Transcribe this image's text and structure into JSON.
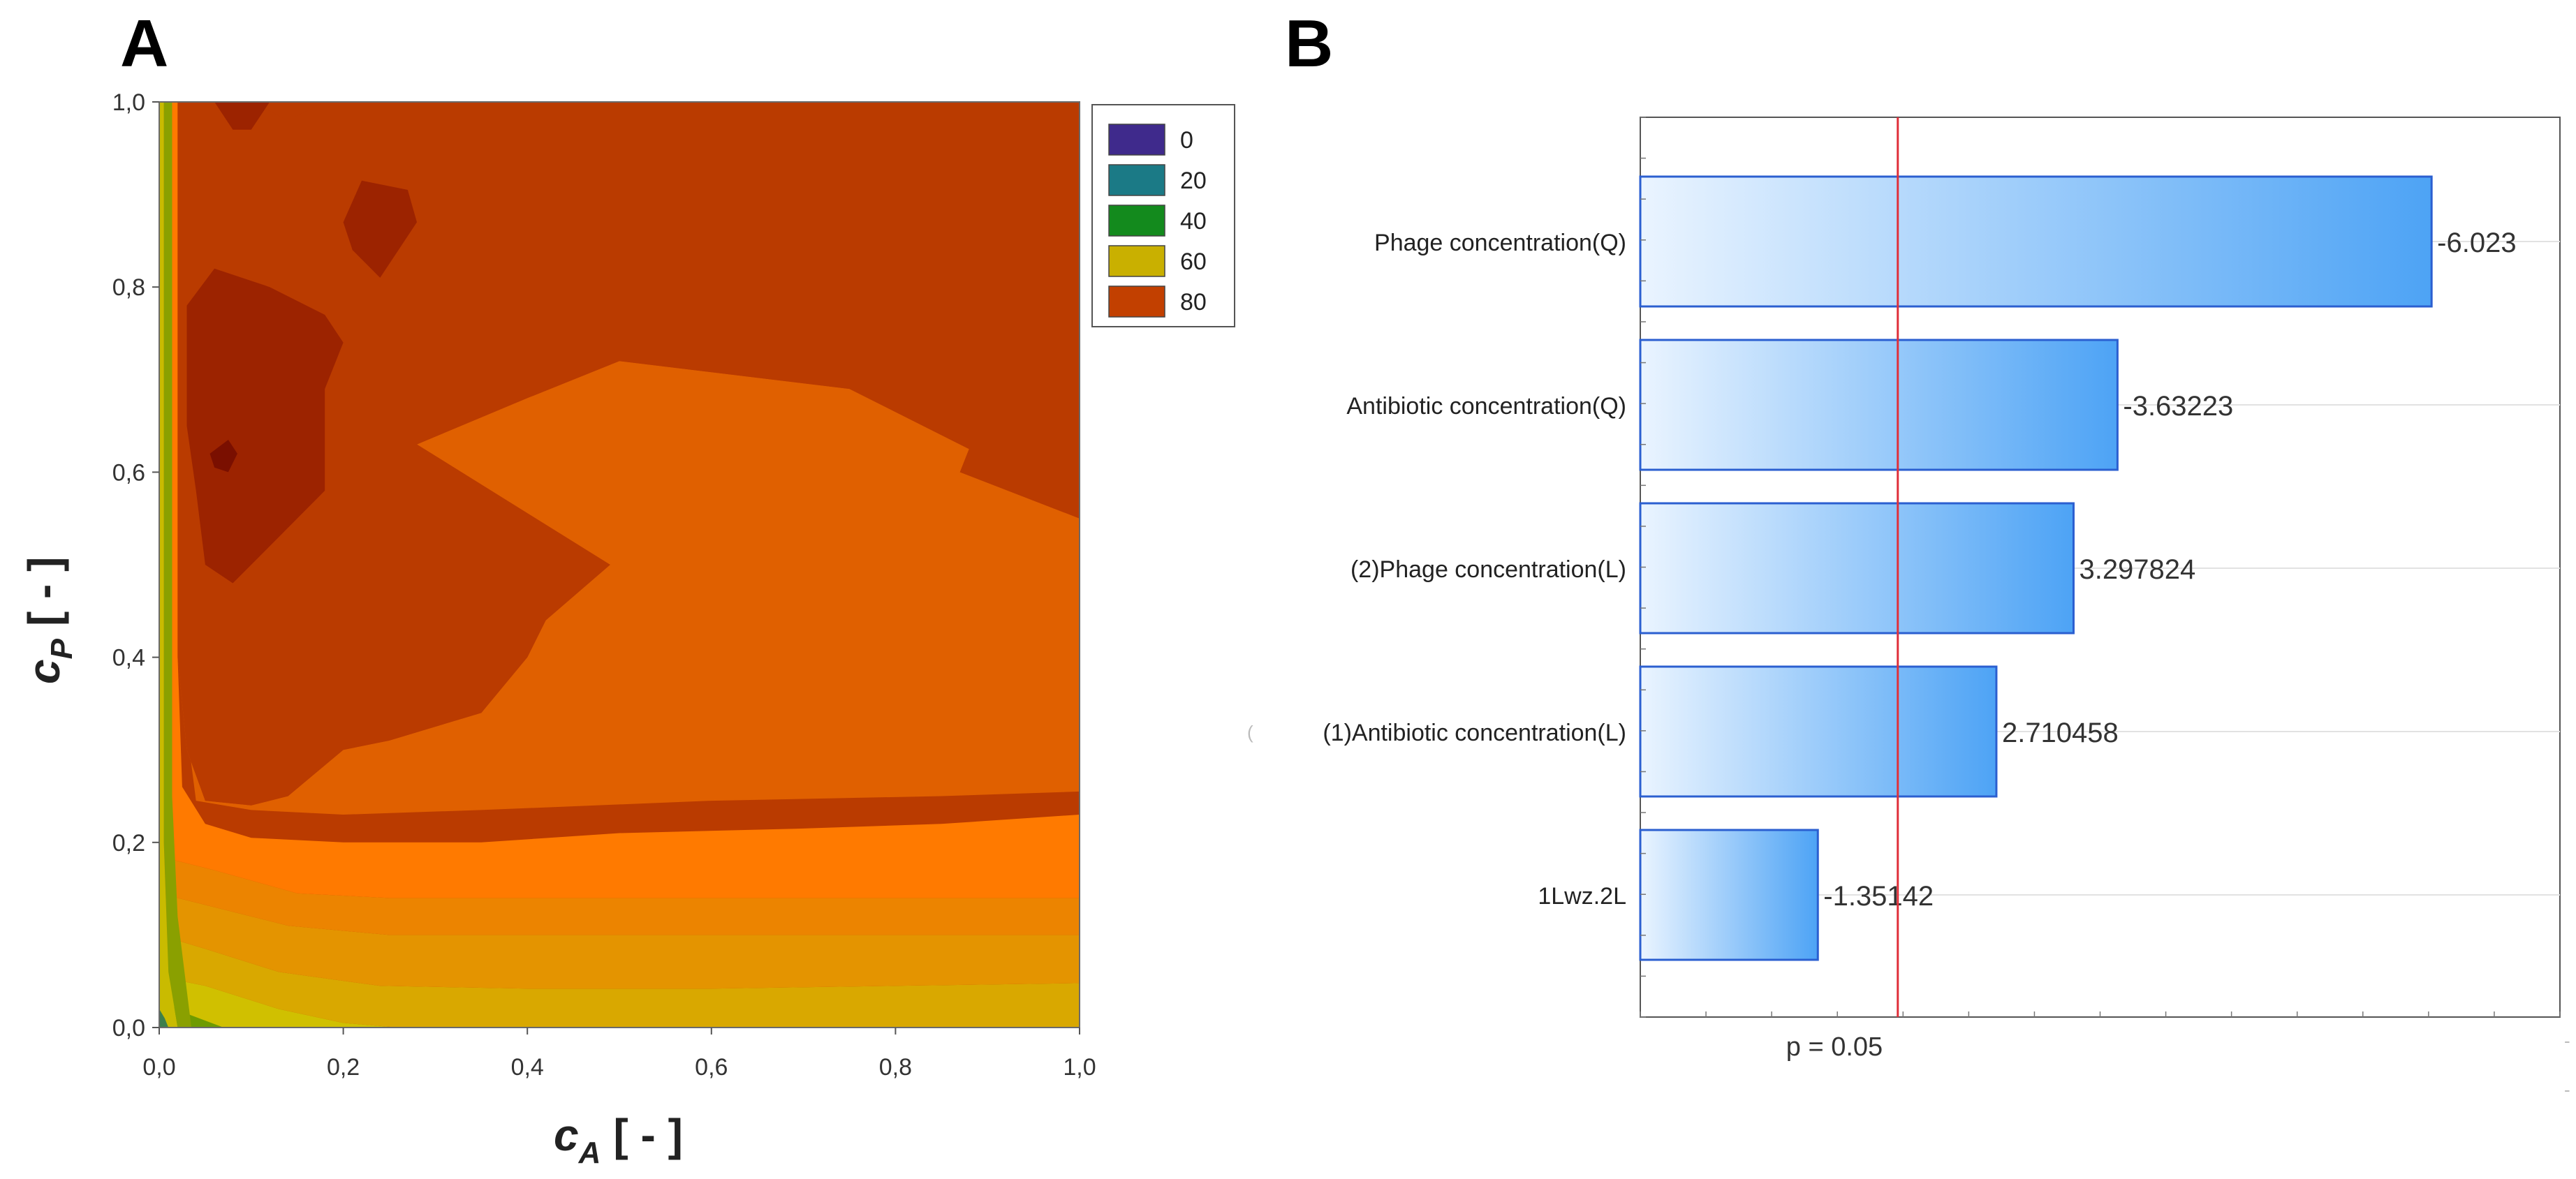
{
  "panels": {
    "a_label": "A",
    "b_label": "B"
  },
  "chart_data": [
    {
      "type": "heatmap",
      "subtype": "filled-contour",
      "panel": "A",
      "xlabel_main": "c",
      "xlabel_sub": "A",
      "xlabel_unit": "[ - ]",
      "ylabel_main": "c",
      "ylabel_sub": "P",
      "ylabel_unit": "[ - ]",
      "xlim": [
        0,
        1
      ],
      "ylim": [
        0,
        1
      ],
      "x_ticks": [
        {
          "v": 0.0,
          "label": "0,0"
        },
        {
          "v": 0.2,
          "label": "0,2"
        },
        {
          "v": 0.4,
          "label": "0,4"
        },
        {
          "v": 0.6,
          "label": "0,6"
        },
        {
          "v": 0.8,
          "label": "0,8"
        },
        {
          "v": 1.0,
          "label": "1,0"
        }
      ],
      "y_ticks": [
        {
          "v": 0.0,
          "label": "0,0"
        },
        {
          "v": 0.2,
          "label": "0,2"
        },
        {
          "v": 0.4,
          "label": "0,4"
        },
        {
          "v": 0.6,
          "label": "0,6"
        },
        {
          "v": 0.8,
          "label": "0,8"
        },
        {
          "v": 1.0,
          "label": "1,0"
        }
      ],
      "legend": [
        {
          "label": "0",
          "color": "#3f2a8c"
        },
        {
          "label": "20",
          "color": "#1b7a86"
        },
        {
          "label": "40",
          "color": "#138a1d"
        },
        {
          "label": "60",
          "color": "#c9b000"
        },
        {
          "label": "80",
          "color": "#c24000"
        }
      ],
      "regions": [
        {
          "name": "band-55",
          "color": "#d0c000",
          "points": [
            [
              0,
              0
            ],
            [
              0,
              0.055
            ],
            [
              0.05,
              0.045
            ],
            [
              0.13,
              0.02
            ],
            [
              0.2,
              0.005
            ],
            [
              0.26,
              0
            ],
            [
              0,
              0
            ]
          ]
        },
        {
          "name": "band-60",
          "color": "#d9a800",
          "points": [
            [
              0,
              0.055
            ],
            [
              0,
              0.1
            ],
            [
              0.05,
              0.085
            ],
            [
              0.13,
              0.06
            ],
            [
              0.24,
              0.045
            ],
            [
              0.4,
              0.042
            ],
            [
              0.6,
              0.042
            ],
            [
              0.8,
              0.045
            ],
            [
              1,
              0.048
            ],
            [
              1,
              0
            ],
            [
              0.26,
              0
            ],
            [
              0.2,
              0.005
            ],
            [
              0.13,
              0.02
            ],
            [
              0.05,
              0.045
            ]
          ]
        },
        {
          "name": "band-65",
          "color": "#e49400",
          "points": [
            [
              0,
              0.1
            ],
            [
              0,
              0.145
            ],
            [
              0.06,
              0.13
            ],
            [
              0.14,
              0.11
            ],
            [
              0.25,
              0.1
            ],
            [
              0.4,
              0.1
            ],
            [
              0.6,
              0.1
            ],
            [
              0.8,
              0.1
            ],
            [
              1,
              0.1
            ],
            [
              1,
              0.048
            ],
            [
              0.8,
              0.045
            ],
            [
              0.6,
              0.042
            ],
            [
              0.4,
              0.042
            ],
            [
              0.24,
              0.045
            ],
            [
              0.13,
              0.06
            ],
            [
              0.05,
              0.085
            ]
          ]
        },
        {
          "name": "band-70",
          "color": "#ec8400",
          "points": [
            [
              0,
              0.145
            ],
            [
              0,
              0.185
            ],
            [
              0.06,
              0.17
            ],
            [
              0.15,
              0.145
            ],
            [
              0.25,
              0.14
            ],
            [
              0.4,
              0.14
            ],
            [
              0.6,
              0.14
            ],
            [
              0.8,
              0.14
            ],
            [
              1,
              0.14
            ],
            [
              1,
              0.1
            ],
            [
              0.8,
              0.1
            ],
            [
              0.6,
              0.1
            ],
            [
              0.4,
              0.1
            ],
            [
              0.25,
              0.1
            ],
            [
              0.14,
              0.11
            ],
            [
              0.06,
              0.13
            ]
          ]
        },
        {
          "name": "band-75",
          "color": "#ff7a00",
          "points": [
            [
              0.02,
              1
            ],
            [
              0.02,
              0.4
            ],
            [
              0.025,
              0.26
            ],
            [
              0.05,
              0.22
            ],
            [
              0.1,
              0.205
            ],
            [
              0.2,
              0.2
            ],
            [
              0.35,
              0.2
            ],
            [
              0.5,
              0.21
            ],
            [
              0.7,
              0.215
            ],
            [
              0.85,
              0.22
            ],
            [
              1,
              0.23
            ],
            [
              1,
              0.14
            ],
            [
              0.8,
              0.14
            ],
            [
              0.6,
              0.14
            ],
            [
              0.4,
              0.14
            ],
            [
              0.25,
              0.14
            ],
            [
              0.15,
              0.145
            ],
            [
              0.06,
              0.17
            ],
            [
              0,
              0.185
            ],
            [
              0,
              1
            ]
          ]
        },
        {
          "name": "band-78",
          "color": "#e06000",
          "points": [
            [
              0.02,
              0.4
            ],
            [
              0.04,
              0.245
            ],
            [
              0.1,
              0.235
            ],
            [
              0.2,
              0.23
            ],
            [
              0.35,
              0.235
            ],
            [
              0.6,
              0.245
            ],
            [
              0.85,
              0.25
            ],
            [
              1,
              0.255
            ],
            [
              1,
              0.55
            ],
            [
              0.87,
              0.6
            ],
            [
              0.88,
              0.625
            ],
            [
              0.75,
              0.69
            ],
            [
              0.5,
              0.72
            ],
            [
              0.4,
              0.68
            ],
            [
              0.28,
              0.63
            ],
            [
              0.49,
              0.5
            ],
            [
              0.42,
              0.44
            ],
            [
              0.4,
              0.4
            ],
            [
              0.35,
              0.34
            ],
            [
              0.25,
              0.31
            ],
            [
              0.2,
              0.3
            ],
            [
              0.14,
              0.25
            ],
            [
              0.1,
              0.24
            ],
            [
              0.05,
              0.245
            ],
            [
              0.03,
              0.3
            ]
          ]
        },
        {
          "name": "band-82",
          "color": "#ba3b00",
          "points": [
            [
              0.03,
              1
            ],
            [
              0.1,
              1
            ],
            [
              0.14,
              0.98
            ],
            [
              0.18,
              1
            ],
            [
              1,
              1
            ],
            [
              1,
              0.55
            ],
            [
              0.87,
              0.6
            ],
            [
              0.88,
              0.625
            ],
            [
              0.75,
              0.69
            ],
            [
              0.5,
              0.72
            ],
            [
              0.4,
              0.68
            ],
            [
              0.28,
              0.63
            ],
            [
              0.49,
              0.5
            ],
            [
              0.42,
              0.44
            ],
            [
              0.4,
              0.4
            ],
            [
              0.35,
              0.34
            ],
            [
              0.25,
              0.31
            ],
            [
              0.2,
              0.3
            ],
            [
              0.14,
              0.25
            ],
            [
              0.1,
              0.24
            ],
            [
              0.05,
              0.245
            ],
            [
              0.03,
              0.3
            ],
            [
              0.02,
              0.4
            ],
            [
              0.02,
              1
            ]
          ]
        },
        {
          "name": "band-86",
          "color": "#9c2300",
          "points": [
            [
              0.03,
              0.78
            ],
            [
              0.06,
              0.82
            ],
            [
              0.12,
              0.8
            ],
            [
              0.18,
              0.77
            ],
            [
              0.2,
              0.74
            ],
            [
              0.18,
              0.69
            ],
            [
              0.18,
              0.58
            ],
            [
              0.12,
              0.52
            ],
            [
              0.08,
              0.48
            ],
            [
              0.05,
              0.5
            ],
            [
              0.04,
              0.58
            ],
            [
              0.03,
              0.65
            ]
          ]
        },
        {
          "name": "band-86b",
          "color": "#9c2300",
          "points": [
            [
              0.21,
              0.84
            ],
            [
              0.24,
              0.81
            ],
            [
              0.28,
              0.87
            ],
            [
              0.27,
              0.905
            ],
            [
              0.22,
              0.915
            ],
            [
              0.2,
              0.87
            ]
          ]
        },
        {
          "name": "band-86c",
          "color": "#9c2300",
          "points": [
            [
              0.06,
              1
            ],
            [
              0.12,
              1
            ],
            [
              0.1,
              0.97
            ],
            [
              0.08,
              0.97
            ]
          ]
        },
        {
          "name": "band-90",
          "color": "#7a0f00",
          "points": [
            [
              0.055,
              0.62
            ],
            [
              0.075,
              0.635
            ],
            [
              0.085,
              0.62
            ],
            [
              0.075,
              0.6
            ],
            [
              0.06,
              0.605
            ]
          ]
        },
        {
          "name": "edge-green",
          "color": "#6e9b00",
          "points": [
            [
              0,
              0
            ],
            [
              0,
              0.03
            ],
            [
              0.03,
              0.015
            ],
            [
              0.07,
              0
            ],
            [
              0,
              0
            ]
          ]
        },
        {
          "name": "edge-strip-yellow",
          "color": "#c9bb00",
          "points": [
            [
              0,
              1
            ],
            [
              0.005,
              1
            ],
            [
              0.005,
              0.2
            ],
            [
              0.01,
              0.06
            ],
            [
              0.02,
              0
            ],
            [
              0,
              0
            ]
          ]
        },
        {
          "name": "edge-strip-olive",
          "color": "#8aa000",
          "points": [
            [
              0.005,
              1
            ],
            [
              0.014,
              1
            ],
            [
              0.014,
              0.25
            ],
            [
              0.02,
              0.12
            ],
            [
              0.03,
              0.04
            ],
            [
              0.035,
              0.0
            ],
            [
              0.02,
              0
            ],
            [
              0.01,
              0.06
            ],
            [
              0.005,
              0.2
            ]
          ]
        },
        {
          "name": "edge-strip-teal",
          "color": "#3d7f4c",
          "points": [
            [
              0,
              0
            ],
            [
              0,
              0.02
            ],
            [
              0.006,
              0.01
            ],
            [
              0.01,
              0
            ]
          ]
        }
      ]
    },
    {
      "type": "bar",
      "orientation": "horizontal",
      "panel": "B",
      "subtype": "pareto",
      "categories": [
        "Phage concentration(Q)",
        "Antibiotic concentration(Q)",
        "(2)Phage concentration(L)",
        "(1)Antibiotic concentration(L)",
        "1Lwz.2L"
      ],
      "values": [
        -6.023,
        -3.63223,
        3.297824,
        2.710458,
        -1.35142
      ],
      "value_labels": [
        "-6.023",
        "-3.63223",
        "3.297824",
        "2.710458",
        "-1.35142"
      ],
      "xlim": [
        0,
        7.0
      ],
      "reference_line": {
        "value": 1.96,
        "label": "p = 0.05",
        "color": "#e0303a"
      },
      "bar_fill_light": "#eaf4ff",
      "bar_fill_dark": "#4da3f5",
      "bar_stroke": "#2b5fd0",
      "stray_marks": [
        "(",
        "-",
        "-"
      ]
    }
  ]
}
